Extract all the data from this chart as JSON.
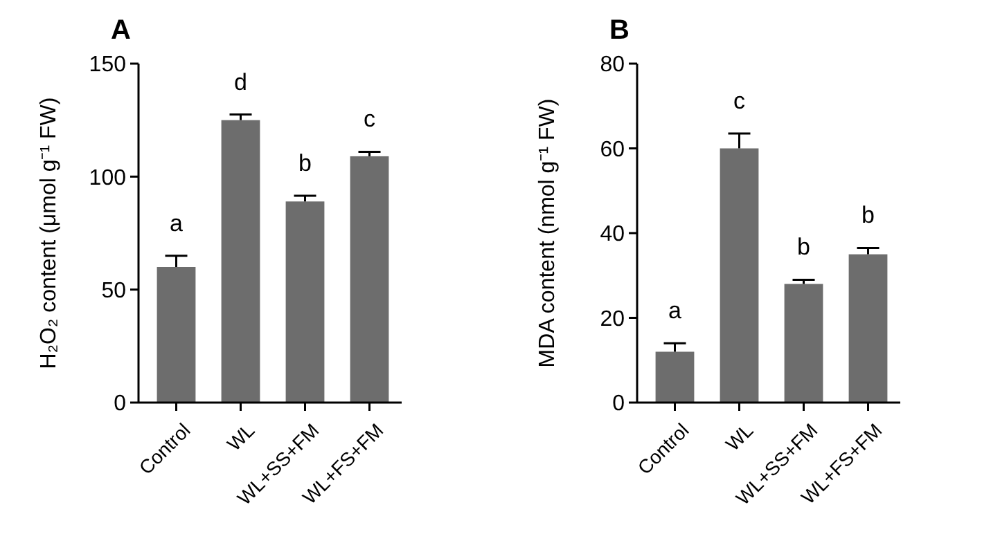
{
  "chart_data": [
    {
      "type": "bar",
      "title": "A",
      "ylabel": "H₂O₂ content (μmol g⁻¹ FW)",
      "categories": [
        "Control",
        "WL",
        "WL+SS+FM",
        "WL+FS+FM"
      ],
      "values": [
        60,
        125,
        89,
        109
      ],
      "errors": [
        5,
        2.5,
        2.5,
        2
      ],
      "color": "#6d6d6d",
      "ylim": [
        0,
        150
      ],
      "yticks": [
        0,
        50,
        100,
        150
      ],
      "grid": false,
      "annotations": [
        "a",
        "d",
        "b",
        "c"
      ]
    },
    {
      "type": "bar",
      "title": "B",
      "ylabel": "MDA content (nmol g⁻¹ FW)",
      "categories": [
        "Control",
        "WL",
        "WL+SS+FM",
        "WL+FS+FM"
      ],
      "values": [
        12,
        60,
        28,
        35
      ],
      "errors": [
        2,
        3.5,
        1,
        1.5
      ],
      "color": "#6d6d6d",
      "ylim": [
        0,
        80
      ],
      "yticks": [
        0,
        20,
        40,
        60,
        80
      ],
      "grid": false,
      "annotations": [
        "a",
        "c",
        "b",
        "b"
      ]
    }
  ]
}
